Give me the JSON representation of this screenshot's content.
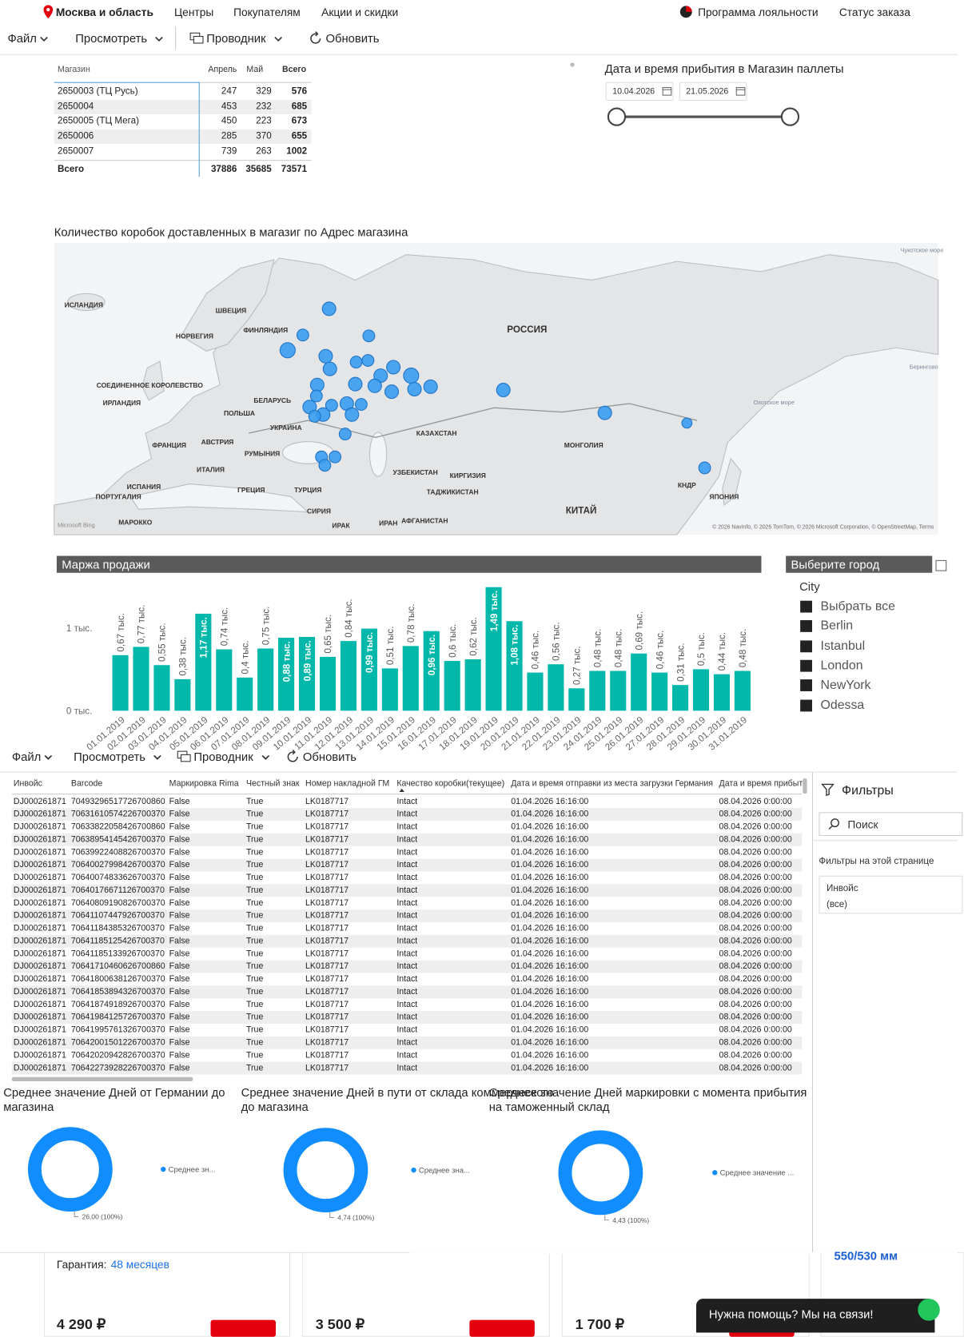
{
  "nav": {
    "location": "Москва и область",
    "links": [
      "Центры",
      "Покупателям",
      "Акции и скидки"
    ],
    "loyalty": "Программа лояльности",
    "order_status": "Статус заказа"
  },
  "toolbar": {
    "items": [
      "Файл",
      "Просмотреть",
      "Проводник",
      "Обновить"
    ]
  },
  "store_table": {
    "columns": [
      "Магазин",
      "Апрель",
      "Май",
      "Всего"
    ],
    "rows": [
      [
        "2650003 (ТЦ Русь)",
        247,
        329,
        576
      ],
      [
        "2650004",
        453,
        232,
        685
      ],
      [
        "2650005 (ТЦ Мега)",
        450,
        223,
        673
      ],
      [
        "2650006",
        285,
        370,
        655
      ],
      [
        "2650007",
        739,
        263,
        1002
      ]
    ],
    "total": [
      "Всего",
      37886,
      35685,
      73571
    ]
  },
  "date_slicer": {
    "title": "Дата и время прибытия в Магазин паллеты",
    "start": "10.04.2026",
    "end": "21.05.2026"
  },
  "map": {
    "title": "Количество коробок доставленных в магазиг по Адрес магазина",
    "labels": [
      "ИСЛАНДИЯ",
      "ШВЕЦИЯ",
      "ФИНЛЯНДИЯ",
      "НОРВЕГИЯ",
      "РОССИЯ",
      "СОЕДИНЕННОЕ КОРОЛЕВСТВО",
      "ИРЛАНДИЯ",
      "БЕЛАРУСЬ",
      "ПОЛЬША",
      "УКРАИНА",
      "КАЗАХСТАН",
      "МОНГОЛИЯ",
      "ФРАНЦИЯ",
      "АВСТРИЯ",
      "РУМЫНИЯ",
      "ИТАЛИЯ",
      "ИСПАНИЯ",
      "ПОРТУГАЛИЯ",
      "ГРЕЦИЯ",
      "ТУРЦИЯ",
      "УЗБЕКИСТАН",
      "КИРГИЗИЯ",
      "ТАДЖИКИСТАН",
      "КНДР",
      "ЯПОНИЯ",
      "КИТАЙ",
      "СИРИЯ",
      "ИРАК",
      "ИРАН",
      "АФГАНИСТАН",
      "МАРОККО",
      "Чукотское море",
      "Берингово",
      "Охотское море"
    ],
    "attribution": "© 2026 NavInfo, © 2026 TomTom, © 2026 Microsoft Corporation, © OpenStreetMap, Terms",
    "logo": "Microsoft Bing"
  },
  "chart_data": [
    {
      "type": "bar",
      "title": "Маржа продажи",
      "categories": [
        "01.01.2019",
        "02.01.2019",
        "03.01.2019",
        "04.01.2019",
        "05.01.2019",
        "06.01.2019",
        "07.01.2019",
        "08.01.2019",
        "09.01.2019",
        "10.01.2019",
        "11.01.2019",
        "12.01.2019",
        "13.01.2019",
        "14.01.2019",
        "15.01.2019",
        "16.01.2019",
        "17.01.2019",
        "18.01.2019",
        "19.01.2019",
        "20.01.2019",
        "21.01.2019",
        "22.01.2019",
        "23.01.2019",
        "24.01.2019",
        "25.01.2019",
        "26.01.2019",
        "27.01.2019",
        "28.01.2019",
        "29.01.2019",
        "30.01.2019",
        "31.01.2019"
      ],
      "values": [
        670,
        770,
        550,
        380,
        1170,
        740,
        400,
        750,
        880,
        890,
        650,
        840,
        990,
        510,
        780,
        960,
        600,
        620,
        1490,
        1080,
        460,
        560,
        270,
        480,
        480,
        690,
        460,
        310,
        500,
        440,
        480
      ],
      "value_labels": [
        "0,67 тыс.",
        "0,77 тыс.",
        "0,55 тыс.",
        "0,38 тыс.",
        "1,17 тыс.",
        "0,74 тыс.",
        "0,4 тыс.",
        "0,75 тыс.",
        "0,88 тыс.",
        "0,89 тыс.",
        "0,65 тыс.",
        "0,84 тыс.",
        "0,99 тыс.",
        "0,51 тыс.",
        "0,78 тыс.",
        "0,96 тыс.",
        "0,6 тыс.",
        "0,62 тыс.",
        "1,49 тыс.",
        "1,08 тыс.",
        "0,46 тыс.",
        "0,56 тыс.",
        "0,27 тыс.",
        "0,48 тыс.",
        "0,48 тыс.",
        "0,69 тыс.",
        "0,46 тыс.",
        "0,31 тыс.",
        "0,5 тыс.",
        "0,44 тыс.",
        "0,48 тыс."
      ],
      "color": "#01b8aa",
      "ylim": [
        0,
        1500
      ],
      "yticks": [
        {
          "value": 0,
          "label": "0 тыс."
        },
        {
          "value": 1000,
          "label": "1 тыс."
        }
      ]
    },
    {
      "type": "pie",
      "title": "Среднее значение Дней от Германии до магазина",
      "categories": [
        "Среднее зн..."
      ],
      "values": [
        26
      ],
      "value_labels": [
        "26,00 (100%)"
      ],
      "color": "#118dff"
    },
    {
      "type": "pie",
      "title": "Среднее значение Дней в пути от склада коммерческого до магазина",
      "categories": [
        "Среднее зна..."
      ],
      "values": [
        4.74
      ],
      "value_labels": [
        "4,74 (100%)"
      ],
      "color": "#118dff"
    },
    {
      "type": "pie",
      "title": "Среднее значение Дней маркировки с момента прибытия на таможенный склад",
      "categories": [
        "Среднее значение ..."
      ],
      "values": [
        4.43
      ],
      "value_labels": [
        "4,43 (100%)"
      ],
      "color": "#118dff"
    }
  ],
  "city_slicer": {
    "title": "Выберите город",
    "field": "City",
    "items": [
      "Выбрать все",
      "Berlin",
      "Istanbul",
      "London",
      "NewYork",
      "Odessa"
    ]
  },
  "detail_table": {
    "columns": [
      "Инвойс",
      "Barcode",
      "Маркировка Rima",
      "Честный знак",
      "Номер накладной ГМ",
      "Качество коробки(текущее)",
      "Дата и время отправки из места загрузки Германия",
      "Дата и время прибыт"
    ],
    "rows": [
      [
        "DJ000261871",
        "70493296517726700860",
        "False",
        "True",
        "LK0187717",
        "Intact",
        "01.04.2026 16:16:00",
        "08.04.2026 0:00:00"
      ],
      [
        "DJ000261871",
        "70631610574226700370",
        "False",
        "True",
        "LK0187717",
        "Intact",
        "01.04.2026 16:16:00",
        "08.04.2026 0:00:00"
      ],
      [
        "DJ000261871",
        "70633822058426700860",
        "False",
        "True",
        "LK0187717",
        "Intact",
        "01.04.2026 16:16:00",
        "08.04.2026 0:00:00"
      ],
      [
        "DJ000261871",
        "70638954145426700370",
        "False",
        "True",
        "LK0187717",
        "Intact",
        "01.04.2026 16:16:00",
        "08.04.2026 0:00:00"
      ],
      [
        "DJ000261871",
        "70639922408826700370",
        "False",
        "True",
        "LK0187717",
        "Intact",
        "01.04.2026 16:16:00",
        "08.04.2026 0:00:00"
      ],
      [
        "DJ000261871",
        "70640027998426700370",
        "False",
        "True",
        "LK0187717",
        "Intact",
        "01.04.2026 16:16:00",
        "08.04.2026 0:00:00"
      ],
      [
        "DJ000261871",
        "70640074833626700370",
        "False",
        "True",
        "LK0187717",
        "Intact",
        "01.04.2026 16:16:00",
        "08.04.2026 0:00:00"
      ],
      [
        "DJ000261871",
        "70640176671126700370",
        "False",
        "True",
        "LK0187717",
        "Intact",
        "01.04.2026 16:16:00",
        "08.04.2026 0:00:00"
      ],
      [
        "DJ000261871",
        "70640809190826700370",
        "False",
        "True",
        "LK0187717",
        "Intact",
        "01.04.2026 16:16:00",
        "08.04.2026 0:00:00"
      ],
      [
        "DJ000261871",
        "70641107447926700370",
        "False",
        "True",
        "LK0187717",
        "Intact",
        "01.04.2026 16:16:00",
        "08.04.2026 0:00:00"
      ],
      [
        "DJ000261871",
        "70641184385326700370",
        "False",
        "True",
        "LK0187717",
        "Intact",
        "01.04.2026 16:16:00",
        "08.04.2026 0:00:00"
      ],
      [
        "DJ000261871",
        "70641185125426700370",
        "False",
        "True",
        "LK0187717",
        "Intact",
        "01.04.2026 16:16:00",
        "08.04.2026 0:00:00"
      ],
      [
        "DJ000261871",
        "70641185133926700370",
        "False",
        "True",
        "LK0187717",
        "Intact",
        "01.04.2026 16:16:00",
        "08.04.2026 0:00:00"
      ],
      [
        "DJ000261871",
        "70641710460626700860",
        "False",
        "True",
        "LK0187717",
        "Intact",
        "01.04.2026 16:16:00",
        "08.04.2026 0:00:00"
      ],
      [
        "DJ000261871",
        "70641800638126700370",
        "False",
        "True",
        "LK0187717",
        "Intact",
        "01.04.2026 16:16:00",
        "08.04.2026 0:00:00"
      ],
      [
        "DJ000261871",
        "70641853894326700370",
        "False",
        "True",
        "LK0187717",
        "Intact",
        "01.04.2026 16:16:00",
        "08.04.2026 0:00:00"
      ],
      [
        "DJ000261871",
        "70641874918926700370",
        "False",
        "True",
        "LK0187717",
        "Intact",
        "01.04.2026 16:16:00",
        "08.04.2026 0:00:00"
      ],
      [
        "DJ000261871",
        "70641984125726700370",
        "False",
        "True",
        "LK0187717",
        "Intact",
        "01.04.2026 16:16:00",
        "08.04.2026 0:00:00"
      ],
      [
        "DJ000261871",
        "70641995761326700370",
        "False",
        "True",
        "LK0187717",
        "Intact",
        "01.04.2026 16:16:00",
        "08.04.2026 0:00:00"
      ],
      [
        "DJ000261871",
        "70642001501226700370",
        "False",
        "True",
        "LK0187717",
        "Intact",
        "01.04.2026 16:16:00",
        "08.04.2026 0:00:00"
      ],
      [
        "DJ000261871",
        "70642020942826700370",
        "False",
        "True",
        "LK0187717",
        "Intact",
        "01.04.2026 16:16:00",
        "08.04.2026 0:00:00"
      ],
      [
        "DJ000261871",
        "70642273928226700370",
        "False",
        "True",
        "LK0187717",
        "Intact",
        "01.04.2026 16:16:00",
        "08.04.2026 0:00:00"
      ]
    ]
  },
  "filters": {
    "title": "Фильтры",
    "search": "Поиск",
    "section": "Фильтры на этой странице",
    "field": "Инвойс",
    "value": "(все)"
  },
  "products": {
    "warranty_label": "Гарантия:",
    "warranty_value": "48 месяцев",
    "size": "550/530 мм",
    "prices": [
      "4 290 ₽",
      "3 500 ₽",
      "1 700 ₽"
    ]
  },
  "chat": {
    "text": "Нужна помощь? Мы на связи!"
  }
}
